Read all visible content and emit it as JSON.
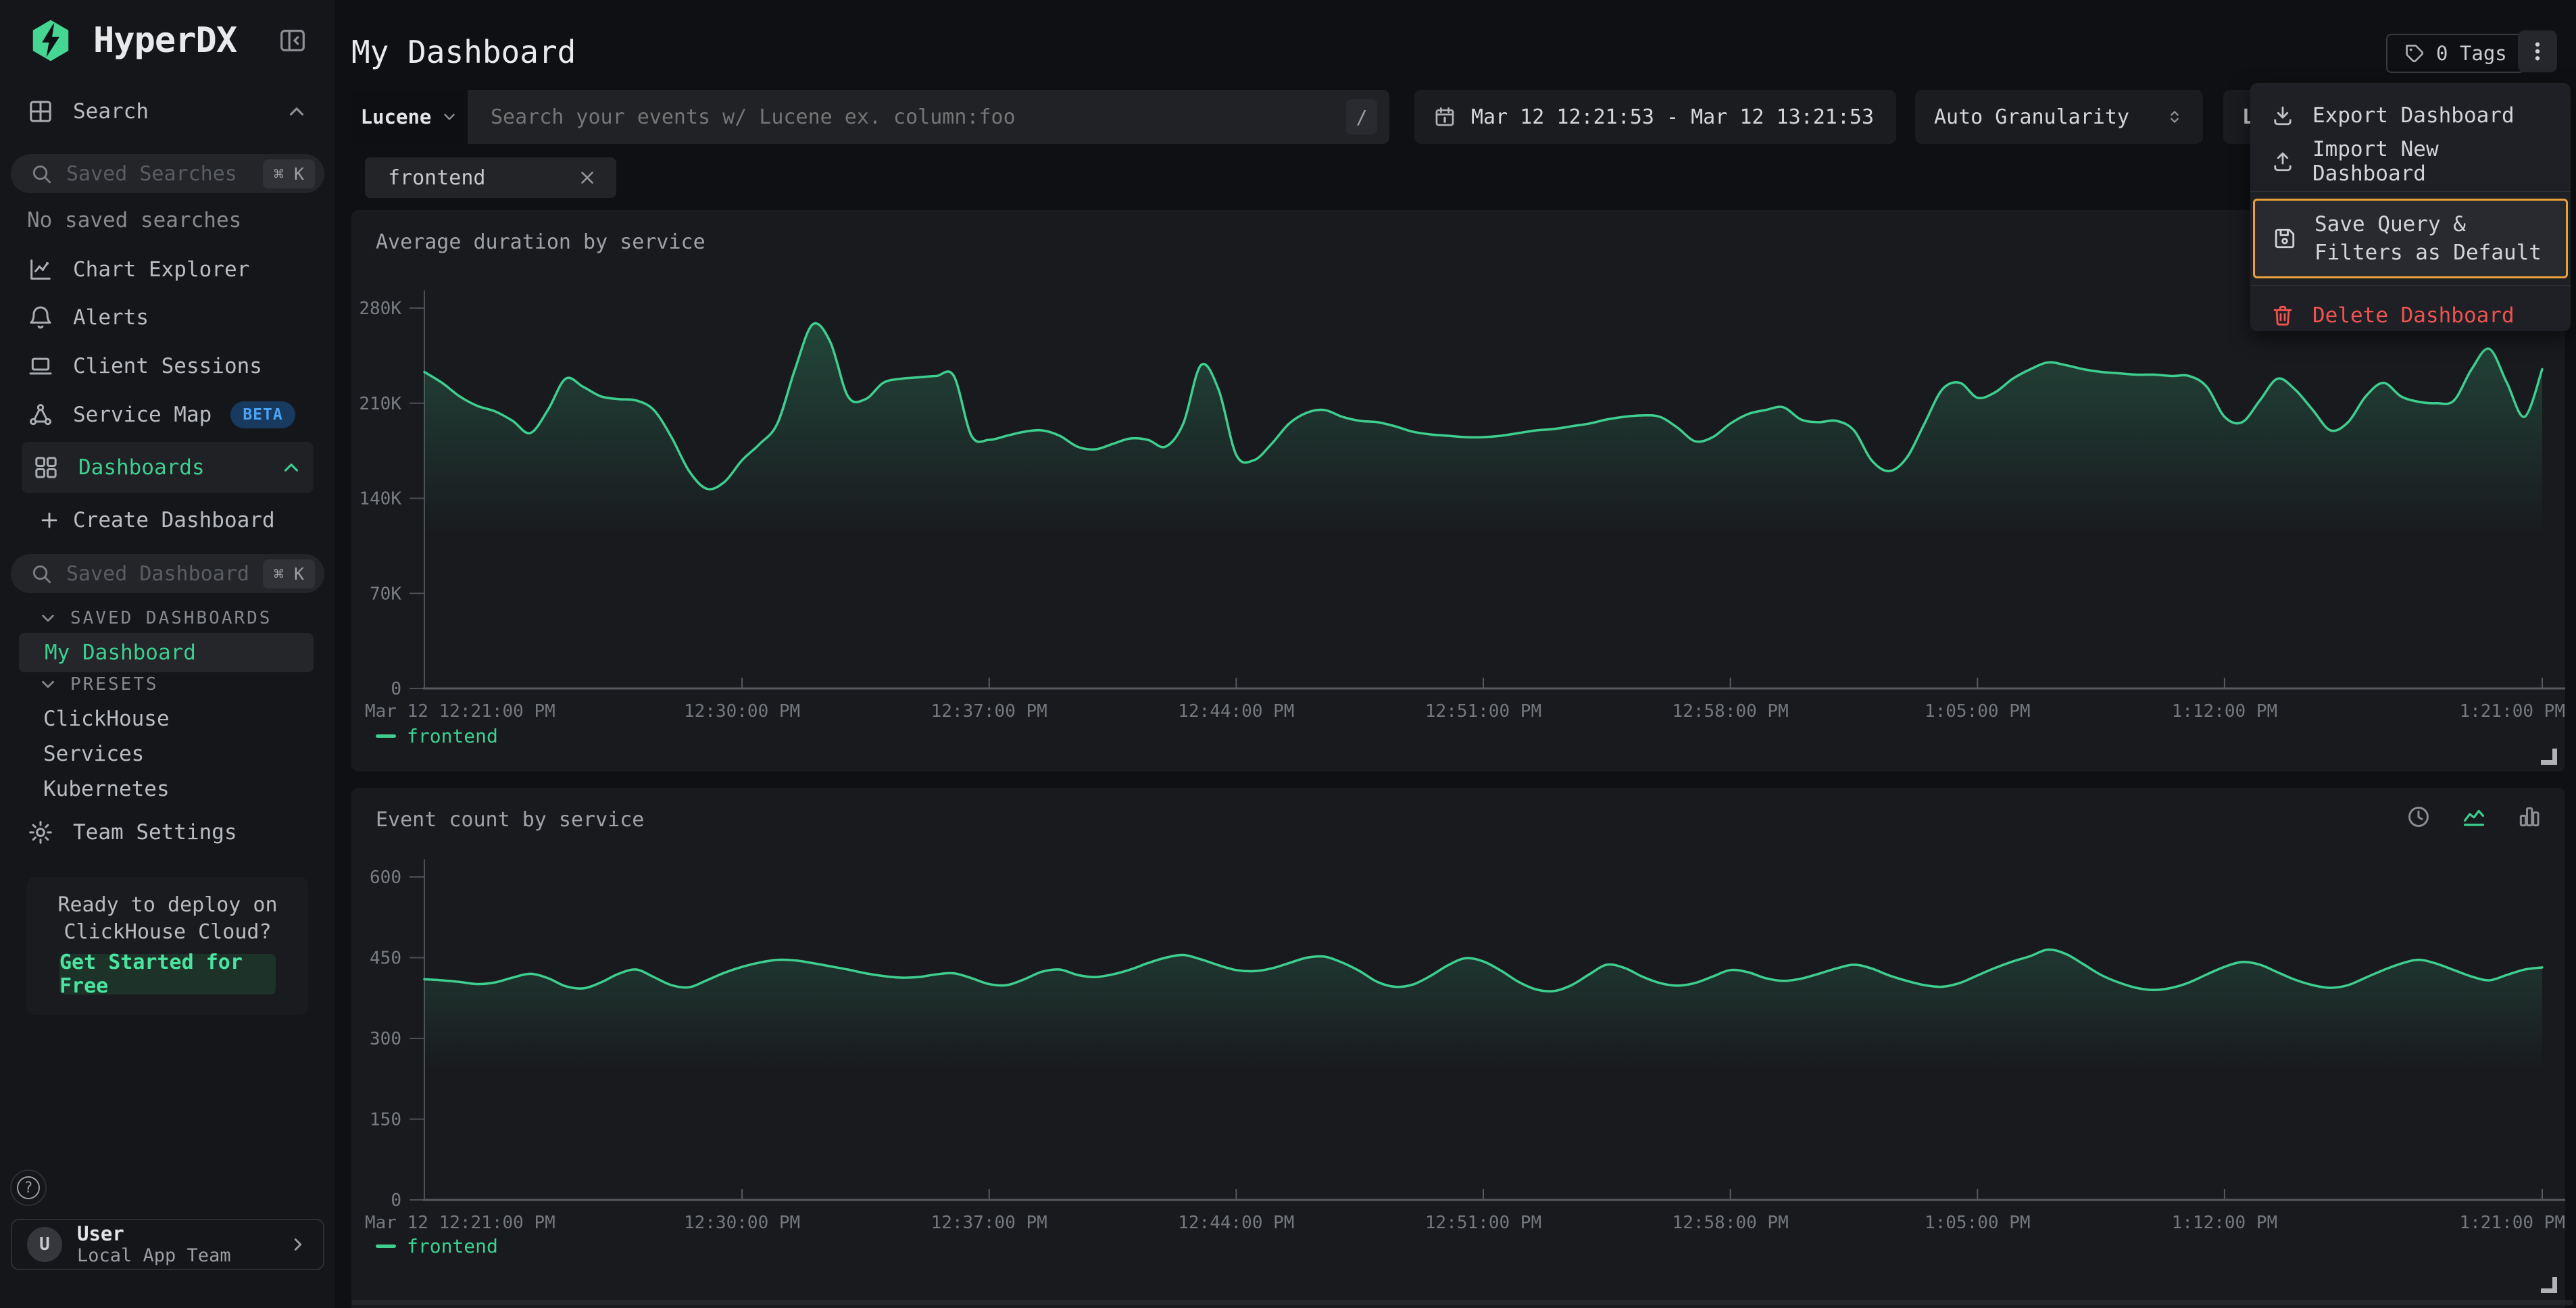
{
  "colors": {
    "accent_green": "#3ecf90",
    "beta_blue": "#4da3f5",
    "highlight_orange": "#e9a23b",
    "danger_red": "#ef5350",
    "panel_bg": "#191a1e",
    "sidebar_bg": "#15161a",
    "page_bg": "#0f1013"
  },
  "app": {
    "brand": "HyperDX"
  },
  "sidebar": {
    "search": {
      "label": "Search"
    },
    "saved_searches": {
      "placeholder": "Saved Searches",
      "shortcut": "⌘ K",
      "empty": "No saved searches"
    },
    "nav": [
      {
        "label": "Chart Explorer"
      },
      {
        "label": "Alerts"
      },
      {
        "label": "Client Sessions"
      },
      {
        "label": "Service Map",
        "badge": "BETA"
      },
      {
        "label": "Dashboards"
      }
    ],
    "create_dashboard": "Create Dashboard",
    "saved_dashboards": {
      "placeholder": "Saved Dashboards",
      "shortcut": "⌘ K"
    },
    "sections": {
      "saved": {
        "title": "SAVED DASHBOARDS",
        "items": [
          "My Dashboard"
        ]
      },
      "presets": {
        "title": "PRESETS",
        "items": [
          "ClickHouse",
          "Services",
          "Kubernetes"
        ]
      }
    },
    "team_settings": "Team Settings",
    "promo": {
      "text": "Ready to deploy on ClickHouse Cloud?",
      "cta": "Get Started for Free"
    },
    "help": "?",
    "user": {
      "initial": "U",
      "name": "User",
      "team": "Local App Team"
    }
  },
  "header": {
    "title": "My Dashboard",
    "tags": "0 Tags"
  },
  "filter_bar": {
    "language": "Lucene",
    "search_placeholder": "Search your events w/ Lucene ex. column:foo",
    "slash": "/",
    "date_range": "Mar 12 12:21:53 - Mar 12 13:21:53",
    "granularity": "Auto Granularity",
    "live_partial": "Li"
  },
  "filters": {
    "chip": "frontend"
  },
  "menu": {
    "items": [
      {
        "label": "Export Dashboard"
      },
      {
        "label": "Import New Dashboard"
      },
      {
        "label": "Save Query & Filters as Default",
        "highlighted": true
      },
      {
        "label": "Delete Dashboard",
        "danger": true
      }
    ]
  },
  "panels": [
    {
      "title": "Average duration by service",
      "legend": "frontend"
    },
    {
      "title": "Event count by service",
      "legend": "frontend"
    }
  ],
  "chart_data": [
    {
      "type": "line",
      "title": "Average duration by service",
      "legend_position": "bottom-left",
      "grid": false,
      "color": "#3ecf90",
      "x_start_label": "Mar 12 12:21:00 PM",
      "x_end_label": "1:21:00 PM",
      "x_step_minutes": 0.5,
      "y_unit": "K",
      "ylim": [
        0,
        280
      ],
      "yticks": [
        {
          "v": 0,
          "label": "0"
        },
        {
          "v": 70,
          "label": "70K"
        },
        {
          "v": 140,
          "label": "140K"
        },
        {
          "v": 210,
          "label": "210K"
        },
        {
          "v": 280,
          "label": "280K"
        }
      ],
      "xticks": [
        {
          "f": 0,
          "label": "Mar 12 12:21:00 PM"
        },
        {
          "f": 0.15,
          "label": "12:30:00 PM"
        },
        {
          "f": 0.26667,
          "label": "12:37:00 PM"
        },
        {
          "f": 0.38333,
          "label": "12:44:00 PM"
        },
        {
          "f": 0.5,
          "label": "12:51:00 PM"
        },
        {
          "f": 0.61667,
          "label": "12:58:00 PM"
        },
        {
          "f": 0.73333,
          "label": "1:05:00 PM"
        },
        {
          "f": 0.85,
          "label": "1:12:00 PM"
        },
        {
          "f": 1,
          "label": "1:21:00 PM"
        }
      ],
      "series": [
        {
          "name": "frontend",
          "values": [
            233,
            225,
            215,
            208,
            204,
            197,
            188,
            205,
            228,
            222,
            215,
            213,
            212,
            205,
            185,
            160,
            147,
            152,
            168,
            180,
            195,
            235,
            268,
            255,
            215,
            213,
            225,
            228,
            229,
            230,
            230,
            186,
            183,
            186,
            189,
            190,
            186,
            178,
            176,
            180,
            184,
            183,
            178,
            195,
            238,
            220,
            172,
            168,
            180,
            195,
            203,
            205,
            200,
            197,
            196,
            193,
            189,
            187,
            186,
            185,
            185,
            186,
            188,
            190,
            191,
            193,
            195,
            198,
            200,
            201,
            200,
            192,
            182,
            185,
            195,
            202,
            205,
            207,
            198,
            196,
            197,
            190,
            168,
            160,
            170,
            195,
            220,
            225,
            214,
            218,
            228,
            235,
            240,
            238,
            235,
            233,
            232,
            231,
            231,
            230,
            230,
            222,
            200,
            196,
            212,
            228,
            220,
            205,
            190,
            196,
            215,
            225,
            215,
            211,
            210,
            212,
            235,
            250,
            225,
            200,
            235
          ]
        }
      ]
    },
    {
      "type": "line",
      "title": "Event count by service",
      "legend_position": "bottom-left",
      "grid": false,
      "color": "#3ecf90",
      "x_start_label": "Mar 12 12:21:00 PM",
      "x_end_label": "1:21:00 PM",
      "x_step_minutes": 0.5,
      "y_unit": "",
      "ylim": [
        0,
        600
      ],
      "yticks": [
        {
          "v": 0,
          "label": "0"
        },
        {
          "v": 150,
          "label": "150"
        },
        {
          "v": 300,
          "label": "300"
        },
        {
          "v": 450,
          "label": "450"
        },
        {
          "v": 600,
          "label": "600"
        }
      ],
      "xticks": [
        {
          "f": 0,
          "label": "Mar 12 12:21:00 PM"
        },
        {
          "f": 0.15,
          "label": "12:30:00 PM"
        },
        {
          "f": 0.26667,
          "label": "12:37:00 PM"
        },
        {
          "f": 0.38333,
          "label": "12:44:00 PM"
        },
        {
          "f": 0.5,
          "label": "12:51:00 PM"
        },
        {
          "f": 0.61667,
          "label": "12:58:00 PM"
        },
        {
          "f": 0.73333,
          "label": "1:05:00 PM"
        },
        {
          "f": 0.85,
          "label": "1:12:00 PM"
        },
        {
          "f": 1,
          "label": "1:21:00 PM"
        }
      ],
      "series": [
        {
          "name": "frontend",
          "values": [
            410,
            408,
            405,
            401,
            404,
            413,
            420,
            412,
            397,
            393,
            404,
            420,
            428,
            414,
            399,
            395,
            408,
            422,
            433,
            441,
            446,
            445,
            440,
            434,
            428,
            421,
            416,
            413,
            414,
            419,
            421,
            412,
            401,
            399,
            410,
            424,
            428,
            418,
            414,
            419,
            428,
            440,
            450,
            455,
            447,
            436,
            427,
            425,
            430,
            440,
            450,
            452,
            441,
            425,
            405,
            396,
            400,
            416,
            436,
            449,
            443,
            426,
            405,
            391,
            388,
            399,
            419,
            437,
            431,
            415,
            403,
            398,
            403,
            415,
            427,
            423,
            412,
            407,
            411,
            420,
            430,
            437,
            430,
            417,
            407,
            399,
            396,
            403,
            417,
            431,
            443,
            453,
            465,
            457,
            438,
            418,
            404,
            394,
            390,
            394,
            404,
            419,
            433,
            442,
            437,
            423,
            409,
            399,
            394,
            399,
            413,
            427,
            439,
            446,
            439,
            427,
            415,
            408,
            418,
            428,
            432
          ]
        }
      ]
    }
  ]
}
